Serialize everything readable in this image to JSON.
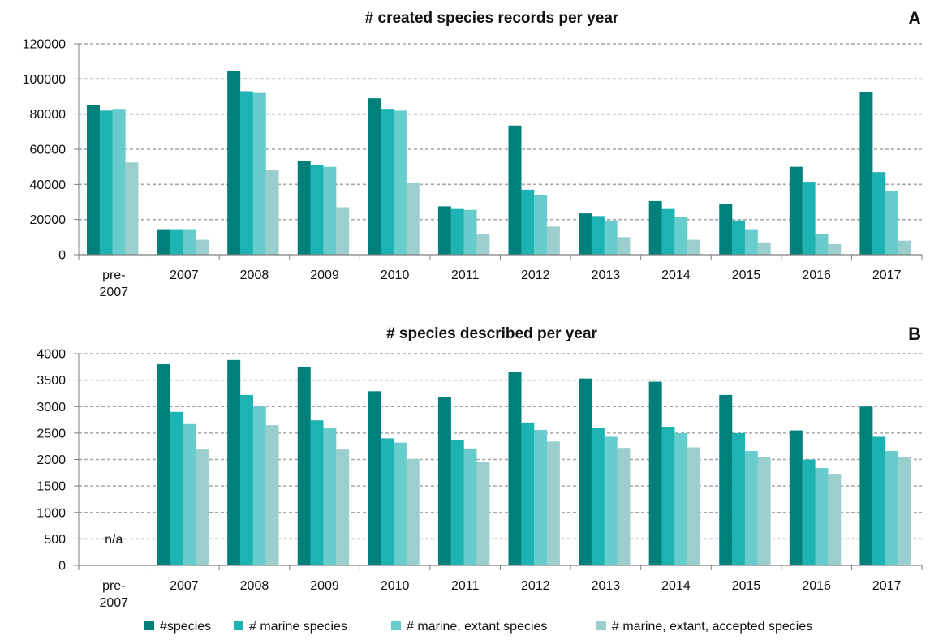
{
  "chart_data": [
    {
      "type": "bar",
      "title": "# created species records per year",
      "panel_label": "A",
      "categories": [
        "pre-2007",
        "2007",
        "2008",
        "2009",
        "2010",
        "2011",
        "2012",
        "2013",
        "2014",
        "2015",
        "2016",
        "2017"
      ],
      "category_labels": [
        [
          "pre-",
          "2007"
        ],
        [
          "2007"
        ],
        [
          "2008"
        ],
        [
          "2009"
        ],
        [
          "2010"
        ],
        [
          "2011"
        ],
        [
          "2012"
        ],
        [
          "2013"
        ],
        [
          "2014"
        ],
        [
          "2015"
        ],
        [
          "2016"
        ],
        [
          "2017"
        ]
      ],
      "series": [
        {
          "name": "#species",
          "color": "#00807A",
          "values": [
            85000,
            14500,
            104500,
            53500,
            89000,
            27500,
            73500,
            23500,
            30500,
            29000,
            50000,
            92500
          ]
        },
        {
          "name": "# marine species",
          "color": "#1DB3B2",
          "values": [
            82000,
            14500,
            93000,
            51000,
            83000,
            26000,
            37000,
            22000,
            26000,
            19500,
            41500,
            47000
          ]
        },
        {
          "name": "# marine, extant species",
          "color": "#66CCCC",
          "values": [
            83000,
            14500,
            92000,
            50000,
            82000,
            25500,
            34000,
            19500,
            21500,
            14500,
            12000,
            36000
          ]
        },
        {
          "name": "# marine, extant, accepted species",
          "color": "#9BCFCE",
          "values": [
            52500,
            8500,
            48000,
            27000,
            41000,
            11500,
            16000,
            10000,
            8500,
            7000,
            6000,
            8000
          ]
        }
      ],
      "ylim": [
        0,
        120000
      ],
      "yticks": [
        0,
        20000,
        40000,
        60000,
        80000,
        100000,
        120000
      ],
      "ytick_labels": [
        "0",
        "20000",
        "40000",
        "60000",
        "80000",
        "100000",
        "120000"
      ],
      "grid": "horizontal dashed",
      "xlabel": "",
      "ylabel": ""
    },
    {
      "type": "bar",
      "title": "# species described per year",
      "panel_label": "B",
      "categories": [
        "pre-2007",
        "2007",
        "2008",
        "2009",
        "2010",
        "2011",
        "2012",
        "2013",
        "2014",
        "2015",
        "2016",
        "2017"
      ],
      "category_labels": [
        [
          "pre-",
          "2007"
        ],
        [
          "2007"
        ],
        [
          "2008"
        ],
        [
          "2009"
        ],
        [
          "2010"
        ],
        [
          "2011"
        ],
        [
          "2012"
        ],
        [
          "2013"
        ],
        [
          "2014"
        ],
        [
          "2015"
        ],
        [
          "2016"
        ],
        [
          "2017"
        ]
      ],
      "series": [
        {
          "name": "#species",
          "color": "#00807A",
          "values": [
            null,
            3800,
            3880,
            3750,
            3290,
            3180,
            3660,
            3530,
            3470,
            3220,
            2550,
            3000
          ]
        },
        {
          "name": "# marine species",
          "color": "#1DB3B2",
          "values": [
            null,
            2900,
            3220,
            2740,
            2400,
            2360,
            2700,
            2590,
            2620,
            2500,
            2000,
            2430
          ]
        },
        {
          "name": "# marine, extant species",
          "color": "#66CCCC",
          "values": [
            null,
            2670,
            3000,
            2590,
            2320,
            2210,
            2560,
            2430,
            2500,
            2160,
            1840,
            2160
          ]
        },
        {
          "name": "# marine, extant, accepted species",
          "color": "#9BCFCE",
          "values": [
            null,
            2190,
            2650,
            2190,
            2010,
            1960,
            2340,
            2220,
            2230,
            2040,
            1730,
            2040
          ]
        }
      ],
      "annotations": [
        {
          "category": "pre-2007",
          "text": "n/a"
        }
      ],
      "ylim": [
        0,
        4000
      ],
      "yticks": [
        0,
        500,
        1000,
        1500,
        2000,
        2500,
        3000,
        3500,
        4000
      ],
      "ytick_labels": [
        "0",
        "500",
        "1000",
        "1500",
        "2000",
        "2500",
        "3000",
        "3500",
        "4000"
      ],
      "grid": "horizontal dashed",
      "xlabel": "",
      "ylabel": ""
    }
  ],
  "legend": {
    "placement": "bottom",
    "items": [
      {
        "label": "#species",
        "color": "#00807A"
      },
      {
        "label": "# marine species",
        "color": "#1DB3B2"
      },
      {
        "label": "# marine, extant species",
        "color": "#66CCCC"
      },
      {
        "label": "# marine, extant, accepted species",
        "color": "#9BCFCE"
      }
    ]
  }
}
